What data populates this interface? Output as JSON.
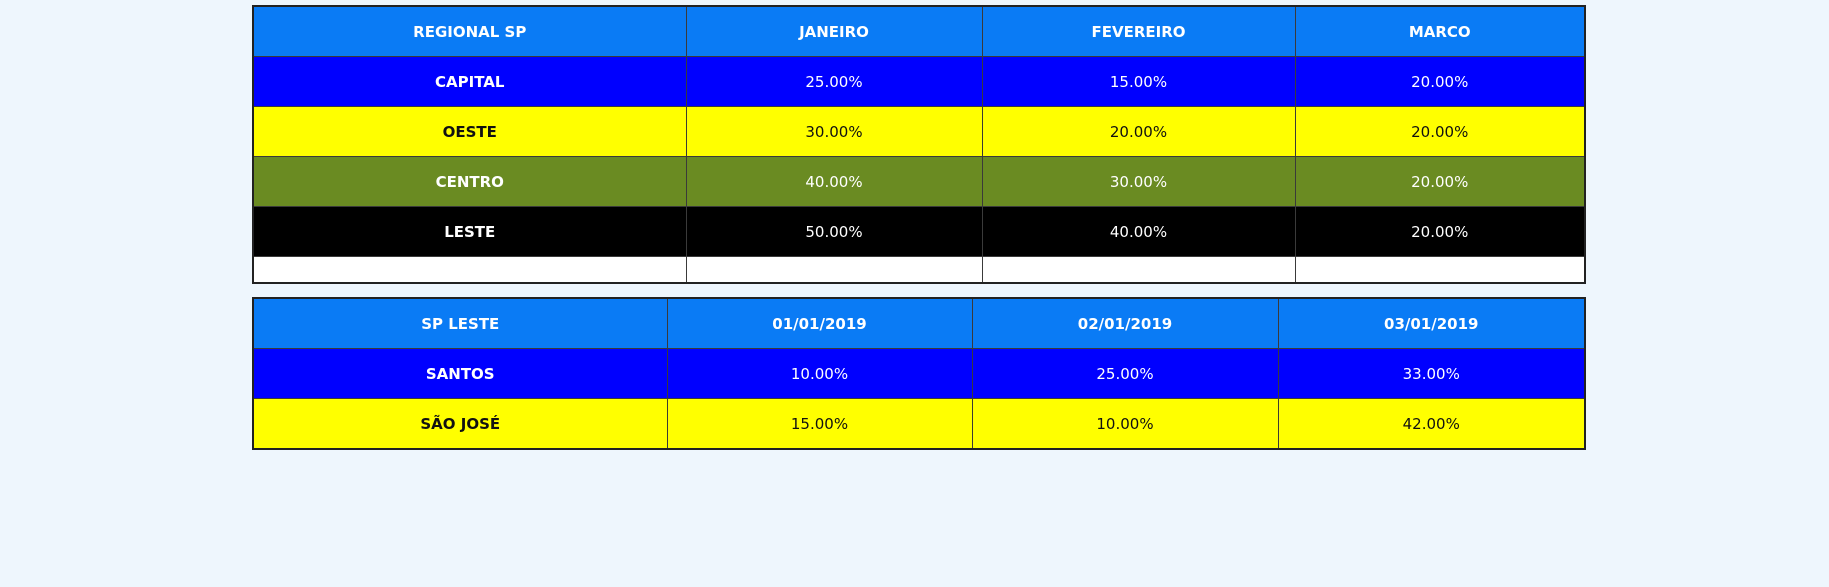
{
  "regional_table": {
    "headers": [
      "REGIONAL SP",
      "JANEIRO",
      "FEVEREIRO",
      "MARCO"
    ],
    "rows": [
      {
        "label": "CAPITAL",
        "values": [
          "25.00%",
          "15.00%",
          "20.00%"
        ],
        "color": "#0000ff"
      },
      {
        "label": "OESTE",
        "values": [
          "30.00%",
          "20.00%",
          "20.00%"
        ],
        "color": "#ffff00"
      },
      {
        "label": "CENTRO",
        "values": [
          "40.00%",
          "30.00%",
          "20.00%"
        ],
        "color": "#6a8b22"
      },
      {
        "label": "LESTE",
        "values": [
          "50.00%",
          "40.00%",
          "20.00%"
        ],
        "color": "#000000"
      }
    ]
  },
  "leste_table": {
    "headers": [
      "SP LESTE",
      "01/01/2019",
      "02/01/2019",
      "03/01/2019"
    ],
    "rows": [
      {
        "label": "SANTOS",
        "values": [
          "10.00%",
          "25.00%",
          "33.00%"
        ],
        "color": "#0000ff"
      },
      {
        "label": "SÃO JOSÉ",
        "values": [
          "15.00%",
          "10.00%",
          "42.00%"
        ],
        "color": "#ffff00"
      }
    ]
  },
  "colors": {
    "header": "#0a7bf5",
    "background": "#eef6fd"
  }
}
